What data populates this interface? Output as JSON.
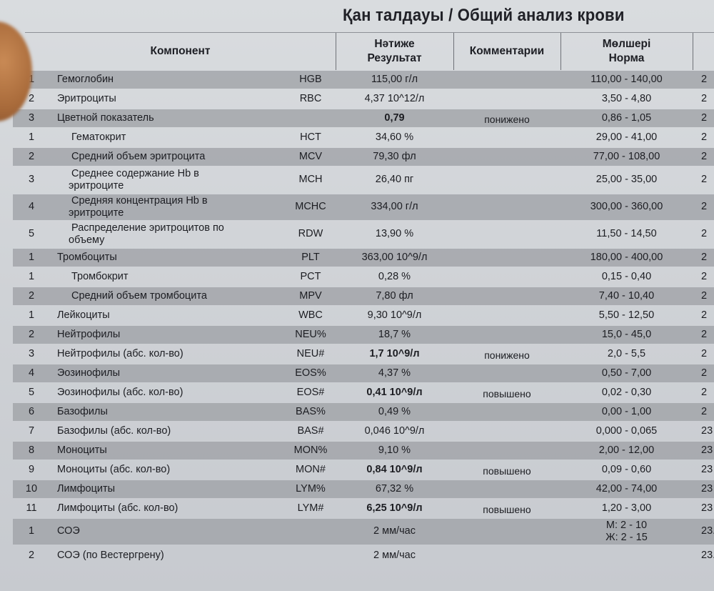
{
  "document": {
    "title": "Қан талдауы / Общий анализ крови",
    "headers": {
      "component": "Компонент",
      "result_kz": "Нәтиже",
      "result_ru": "Результат",
      "comments": "Комментарии",
      "norm_kz": "Мөлшері",
      "norm_ru": "Норма"
    },
    "rows": [
      {
        "num": "1",
        "name": "Гемоглобин",
        "code": "HGB",
        "result": "115,00 г/л",
        "comment": "",
        "norm": "110,00 - 140,00",
        "date": "2",
        "shaded": true,
        "indent": 0,
        "bold": false
      },
      {
        "num": "2",
        "name": "Эритроциты",
        "code": "RBC",
        "result": "4,37 10^12/л",
        "comment": "",
        "norm": "3,50 - 4,80",
        "date": "2",
        "shaded": false,
        "indent": 0,
        "bold": false
      },
      {
        "num": "3",
        "name": "Цветной показатель",
        "code": "",
        "result": "0,79",
        "comment": "понижено",
        "norm": "0,86 - 1,05",
        "date": "2",
        "shaded": true,
        "indent": 0,
        "bold": true
      },
      {
        "num": "1",
        "name": "Гематокрит",
        "code": "HCT",
        "result": "34,60 %",
        "comment": "",
        "norm": "29,00 - 41,00",
        "date": "2",
        "shaded": false,
        "indent": 1,
        "bold": false
      },
      {
        "num": "2",
        "name": "Средний объем эритроцита",
        "code": "MCV",
        "result": "79,30 фл",
        "comment": "",
        "norm": "77,00 - 108,00",
        "date": "2",
        "shaded": true,
        "indent": 1,
        "bold": false
      },
      {
        "num": "3",
        "name": "Среднее содержание Hb в",
        "name2": "эритроците",
        "code": "MCH",
        "result": "26,40 пг",
        "comment": "",
        "norm": "25,00 - 35,00",
        "date": "2",
        "shaded": false,
        "indent": 1,
        "bold": false
      },
      {
        "num": "4",
        "name": "Средняя концентрация Hb в",
        "name2": "эритроците",
        "code": "MCHC",
        "result": "334,00 г/л",
        "comment": "",
        "norm": "300,00 - 360,00",
        "date": "2",
        "shaded": true,
        "indent": 1,
        "bold": false
      },
      {
        "num": "5",
        "name": "Распределение эритроцитов по",
        "name2": "объему",
        "code": "RDW",
        "result": "13,90 %",
        "comment": "",
        "norm": "11,50 - 14,50",
        "date": "2",
        "shaded": false,
        "indent": 1,
        "bold": false
      },
      {
        "num": "1",
        "name": "Тромбоциты",
        "code": "PLT",
        "result": "363,00 10^9/л",
        "comment": "",
        "norm": "180,00 - 400,00",
        "date": "2",
        "shaded": true,
        "indent": 0,
        "bold": false
      },
      {
        "num": "1",
        "name": "Тромбокрит",
        "code": "PCT",
        "result": "0,28 %",
        "comment": "",
        "norm": "0,15 - 0,40",
        "date": "2",
        "shaded": false,
        "indent": 1,
        "bold": false
      },
      {
        "num": "2",
        "name": "Средний объем тромбоцита",
        "code": "MPV",
        "result": "7,80 фл",
        "comment": "",
        "norm": "7,40 - 10,40",
        "date": "2",
        "shaded": true,
        "indent": 1,
        "bold": false
      },
      {
        "num": "1",
        "name": "Лейкоциты",
        "code": "WBC",
        "result": "9,30 10^9/л",
        "comment": "",
        "norm": "5,50 - 12,50",
        "date": "2",
        "shaded": false,
        "indent": 0,
        "bold": false
      },
      {
        "num": "2",
        "name": "Нейтрофилы",
        "code": "NEU%",
        "result": "18,7 %",
        "comment": "",
        "norm": "15,0 - 45,0",
        "date": "2",
        "shaded": true,
        "indent": 0,
        "bold": false
      },
      {
        "num": "3",
        "name": "Нейтрофилы (абс. кол-во)",
        "code": "NEU#",
        "result": "1,7 10^9/л",
        "comment": "понижено",
        "norm": "2,0 - 5,5",
        "date": "2",
        "shaded": false,
        "indent": 0,
        "bold": true
      },
      {
        "num": "4",
        "name": "Эозинофилы",
        "code": "EOS%",
        "result": "4,37 %",
        "comment": "",
        "norm": "0,50 - 7,00",
        "date": "2",
        "shaded": true,
        "indent": 0,
        "bold": false
      },
      {
        "num": "5",
        "name": "Эозинофилы (абс. кол-во)",
        "code": "EOS#",
        "result": "0,41 10^9/л",
        "comment": "повышено",
        "norm": "0,02 - 0,30",
        "date": "2",
        "shaded": false,
        "indent": 0,
        "bold": true
      },
      {
        "num": "6",
        "name": "Базофилы",
        "code": "BAS%",
        "result": "0,49 %",
        "comment": "",
        "norm": "0,00 - 1,00",
        "date": "2",
        "shaded": true,
        "indent": 0,
        "bold": false
      },
      {
        "num": "7",
        "name": "Базофилы (абс. кол-во)",
        "code": "BAS#",
        "result": "0,046 10^9/л",
        "comment": "",
        "norm": "0,000 - 0,065",
        "date": "23",
        "shaded": false,
        "indent": 0,
        "bold": false
      },
      {
        "num": "8",
        "name": "Моноциты",
        "code": "MON%",
        "result": "9,10 %",
        "comment": "",
        "norm": "2,00 - 12,00",
        "date": "23",
        "shaded": true,
        "indent": 0,
        "bold": false
      },
      {
        "num": "9",
        "name": "Моноциты (абс. кол-во)",
        "code": "MON#",
        "result": "0,84 10^9/л",
        "comment": "повышено",
        "norm": "0,09 - 0,60",
        "date": "23",
        "shaded": false,
        "indent": 0,
        "bold": true
      },
      {
        "num": "10",
        "name": "Лимфоциты",
        "code": "LYM%",
        "result": "67,32 %",
        "comment": "",
        "norm": "42,00 - 74,00",
        "date": "23",
        "shaded": true,
        "indent": 0,
        "bold": false
      },
      {
        "num": "11",
        "name": "Лимфоциты (абс. кол-во)",
        "code": "LYM#",
        "result": "6,25 10^9/л",
        "comment": "повышено",
        "norm": "1,20 - 3,00",
        "date": "23",
        "shaded": false,
        "indent": 0,
        "bold": true
      },
      {
        "num": "1",
        "name": "СОЭ",
        "code": "",
        "result": "2 мм/час",
        "comment": "",
        "norm": "М: 2 - 10",
        "norm2": "Ж: 2 - 15",
        "date": "23.",
        "shaded": true,
        "indent": 0,
        "bold": false
      },
      {
        "num": "2",
        "name": "СОЭ (по Вестергрену)",
        "code": "",
        "result": "2 мм/час",
        "comment": "",
        "norm": "",
        "date": "23.",
        "shaded": false,
        "indent": 0,
        "bold": false
      }
    ]
  }
}
